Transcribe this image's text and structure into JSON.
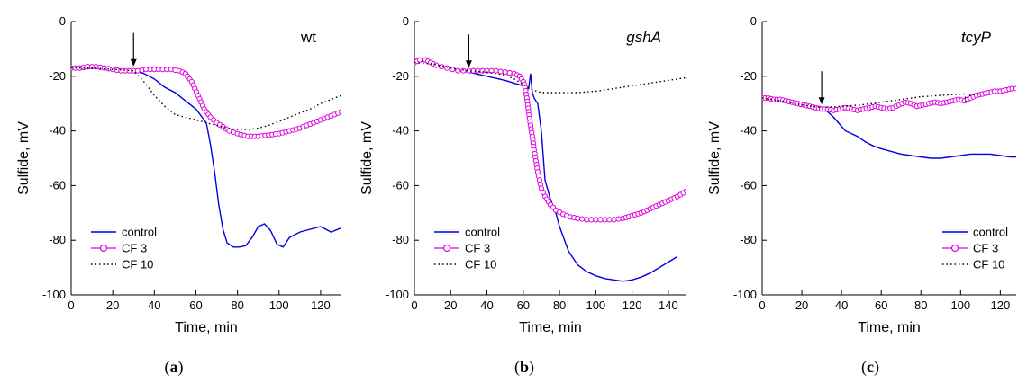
{
  "chart_data": [
    {
      "type": "line",
      "title": "wt",
      "title_italic": false,
      "caption": {
        "open": "(",
        "letter": "a",
        "close": ")"
      },
      "xlabel": "Time, min",
      "ylabel": "Sulfide, mV",
      "xlim": [
        0,
        130
      ],
      "ylim": [
        -100,
        0
      ],
      "xticks": [
        0,
        20,
        40,
        60,
        80,
        100,
        120
      ],
      "yticks": [
        0,
        -20,
        -40,
        -60,
        -80,
        -100
      ],
      "legend": "bottom-left",
      "arrow_x": 30,
      "series": [
        {
          "name": "control",
          "style": "solid",
          "color": "#0000e0",
          "x": [
            0,
            5,
            10,
            15,
            20,
            25,
            30,
            35,
            40,
            45,
            50,
            55,
            60,
            65,
            67,
            69,
            71,
            73,
            75,
            78,
            81,
            84,
            87,
            90,
            93,
            96,
            99,
            102,
            105,
            110,
            115,
            120,
            125,
            130
          ],
          "y": [
            -17,
            -17.5,
            -17,
            -16.8,
            -17,
            -17.5,
            -18,
            -19,
            -21,
            -24,
            -26,
            -29,
            -32,
            -37,
            -45,
            -55,
            -67,
            -76,
            -81,
            -82.5,
            -82.5,
            -82,
            -79,
            -75,
            -74,
            -76.5,
            -81.5,
            -82.5,
            -79,
            -77,
            -76,
            -75,
            -77,
            -75.5
          ]
        },
        {
          "name": "CF 3",
          "style": "circles",
          "color": "#e000e0",
          "x": [
            0,
            4,
            8,
            12,
            16,
            20,
            24,
            28,
            32,
            36,
            40,
            44,
            48,
            52,
            55,
            58,
            61,
            64,
            67,
            70,
            73,
            76,
            80,
            85,
            90,
            95,
            100,
            105,
            110,
            115,
            120,
            125,
            130
          ],
          "y": [
            -17,
            -17,
            -16.5,
            -16.5,
            -17,
            -17.5,
            -18,
            -18,
            -18,
            -17.5,
            -17.5,
            -17.5,
            -17.5,
            -18,
            -19,
            -22,
            -27,
            -32,
            -35,
            -37,
            -38.5,
            -40,
            -41,
            -42,
            -42,
            -41.5,
            -41,
            -40,
            -39,
            -37.5,
            -36,
            -34.5,
            -33
          ]
        },
        {
          "name": "CF 10",
          "style": "dotted",
          "color": "#000000",
          "x": [
            0,
            10,
            20,
            30,
            35,
            40,
            45,
            50,
            55,
            60,
            65,
            70,
            75,
            80,
            85,
            90,
            95,
            100,
            105,
            110,
            115,
            120,
            125,
            130
          ],
          "y": [
            -17,
            -17,
            -17.5,
            -18,
            -22,
            -27,
            -31,
            -34,
            -35,
            -36,
            -37,
            -38,
            -39,
            -39.5,
            -39.5,
            -39,
            -38,
            -36.5,
            -35,
            -33.5,
            -32,
            -30,
            -28.5,
            -27
          ]
        }
      ]
    },
    {
      "type": "line",
      "title": "gshA",
      "title_italic": true,
      "caption": {
        "open": "(",
        "letter": "b",
        "close": ")"
      },
      "xlabel": "Time, min",
      "ylabel": "Sulfide, mV",
      "xlim": [
        0,
        150
      ],
      "ylim": [
        -100,
        0
      ],
      "xticks": [
        0,
        20,
        40,
        60,
        80,
        100,
        120,
        140
      ],
      "yticks": [
        0,
        -20,
        -40,
        -60,
        -80,
        -100
      ],
      "legend": "bottom-left",
      "arrow_x": 30,
      "series": [
        {
          "name": "control",
          "style": "solid",
          "color": "#0000e0",
          "x": [
            0,
            5,
            10,
            15,
            20,
            25,
            30,
            40,
            50,
            55,
            60,
            63,
            64,
            65,
            66,
            68,
            70,
            72,
            75,
            78,
            80,
            85,
            90,
            95,
            100,
            105,
            110,
            115,
            120,
            125,
            130,
            135,
            140,
            145
          ],
          "y": [
            -15,
            -14.5,
            -15.5,
            -16.5,
            -17,
            -18,
            -18.5,
            -20,
            -21.5,
            -22.5,
            -23.5,
            -24.5,
            -19,
            -26,
            -28,
            -30,
            -40,
            -58,
            -65,
            -70,
            -75,
            -84,
            -89,
            -91.5,
            -93,
            -94,
            -94.5,
            -95,
            -94.5,
            -93.5,
            -92,
            -90,
            -88,
            -86
          ]
        },
        {
          "name": "CF 3",
          "style": "circles",
          "color": "#e000e0",
          "x": [
            0,
            3,
            6,
            9,
            12,
            15,
            18,
            21,
            24,
            27,
            30,
            35,
            40,
            45,
            50,
            55,
            58,
            60,
            61,
            62,
            63,
            64,
            65,
            66,
            67,
            68,
            69,
            70,
            72,
            75,
            78,
            82,
            86,
            90,
            95,
            100,
            105,
            110,
            115,
            120,
            125,
            130,
            135,
            140,
            145,
            150
          ],
          "y": [
            -15,
            -14,
            -14,
            -15,
            -16,
            -16.5,
            -17,
            -17.5,
            -18,
            -18,
            -18,
            -18,
            -18,
            -18,
            -18.5,
            -19,
            -20,
            -22,
            -24,
            -28,
            -33,
            -38,
            -42,
            -47,
            -51,
            -55,
            -58,
            -61,
            -64,
            -67,
            -69,
            -70.5,
            -71.5,
            -72,
            -72.5,
            -72.5,
            -72.5,
            -72.5,
            -72,
            -71,
            -70,
            -68.5,
            -67,
            -65.5,
            -64,
            -62
          ]
        },
        {
          "name": "CF 10",
          "style": "dotted",
          "color": "#000000",
          "x": [
            0,
            10,
            20,
            30,
            40,
            50,
            55,
            60,
            65,
            70,
            80,
            90,
            100,
            110,
            120,
            130,
            140,
            150
          ],
          "y": [
            -15,
            -15.5,
            -17,
            -18,
            -18.5,
            -19.5,
            -21,
            -23,
            -25,
            -26,
            -26,
            -26,
            -25.5,
            -24.5,
            -23.5,
            -22.5,
            -21.5,
            -20.5
          ]
        }
      ]
    },
    {
      "type": "line",
      "title": "tcyP",
      "title_italic": true,
      "caption": {
        "open": "(",
        "letter": "c",
        "close": ")"
      },
      "xlabel": "Time, min",
      "ylabel": "Sulfide, mV",
      "xlim": [
        0,
        128
      ],
      "ylim": [
        -100,
        0
      ],
      "xticks": [
        0,
        20,
        40,
        60,
        80,
        100,
        120
      ],
      "yticks": [
        0,
        -20,
        -40,
        -60,
        -80,
        -100
      ],
      "legend": "bottom-right",
      "arrow_x": 30,
      "series": [
        {
          "name": "control",
          "style": "solid",
          "color": "#0000e0",
          "x": [
            0,
            5,
            10,
            15,
            20,
            25,
            30,
            33,
            36,
            39,
            42,
            45,
            48,
            52,
            56,
            60,
            65,
            70,
            75,
            80,
            85,
            90,
            95,
            100,
            105,
            110,
            115,
            120,
            125,
            128
          ],
          "y": [
            -28,
            -28.5,
            -29,
            -29.5,
            -30.5,
            -31.5,
            -32,
            -33,
            -35,
            -37.5,
            -40,
            -41,
            -42,
            -44,
            -45.5,
            -46.5,
            -47.5,
            -48.5,
            -49,
            -49.5,
            -50,
            -50,
            -49.5,
            -49,
            -48.5,
            -48.5,
            -48.5,
            -49,
            -49.5,
            -49.5
          ]
        },
        {
          "name": "CF 3",
          "style": "circles",
          "color": "#e000e0",
          "x": [
            0,
            3,
            6,
            9,
            12,
            15,
            18,
            21,
            24,
            27,
            30,
            33,
            36,
            39,
            42,
            45,
            48,
            51,
            54,
            57,
            60,
            63,
            66,
            69,
            72,
            75,
            78,
            81,
            84,
            87,
            90,
            93,
            96,
            99,
            102,
            105,
            108,
            111,
            114,
            117,
            120,
            123,
            126,
            128
          ],
          "y": [
            -28,
            -28,
            -28.5,
            -28.5,
            -29,
            -29.5,
            -30,
            -30.5,
            -31,
            -31.5,
            -32,
            -32,
            -32.5,
            -32,
            -31.5,
            -32,
            -32.5,
            -32,
            -31.5,
            -31,
            -31.5,
            -32,
            -31.5,
            -30.5,
            -29.5,
            -30,
            -31,
            -30.5,
            -30,
            -29.5,
            -30,
            -29.5,
            -29,
            -28.5,
            -29,
            -28,
            -27,
            -26.5,
            -26,
            -25.5,
            -25.5,
            -25,
            -24.5,
            -24.5
          ]
        },
        {
          "name": "CF 10",
          "style": "dotted",
          "color": "#000000",
          "x": [
            0,
            10,
            20,
            30,
            40,
            50,
            60,
            70,
            80,
            90,
            100,
            102,
            103,
            104,
            110
          ],
          "y": [
            -28,
            -29,
            -30.5,
            -31.5,
            -31,
            -30.5,
            -29.5,
            -28.5,
            -27.5,
            -27,
            -26.5,
            -26.5,
            -30,
            -27,
            -26.5
          ]
        }
      ]
    }
  ]
}
